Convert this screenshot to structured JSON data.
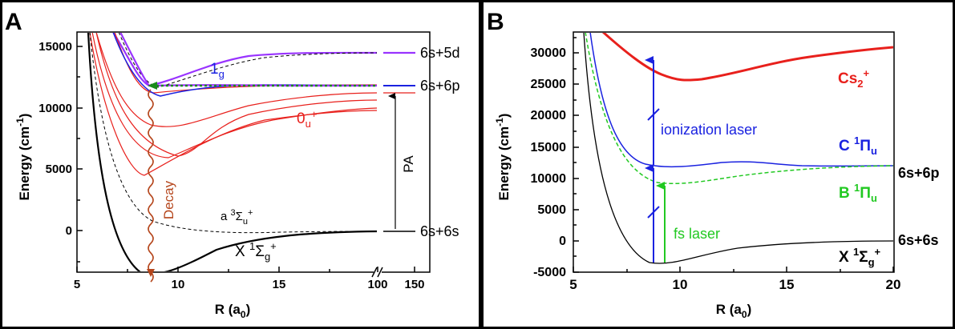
{
  "panelA": {
    "letter": "A",
    "xticks": [
      "5",
      "10",
      "15",
      "100",
      "150"
    ],
    "yticks": [
      "0",
      "5000",
      "10000",
      "15000"
    ],
    "xlabel": {
      "main": "R (a",
      "sub": "0",
      "end": ")"
    },
    "ylabel": {
      "main": "Energy (cm",
      "sup": "-1",
      "end": ")"
    },
    "asymptotes": [
      "6s+5d",
      "6s+6p",
      "6s+6s"
    ],
    "labels": {
      "onesubg": {
        "main": "1",
        "sub": "g"
      },
      "zerou": {
        "main": "0",
        "sub": "u",
        "sup": "+"
      },
      "pa": "PA",
      "decay": "Decay",
      "a3sigma": {
        "main": "a ",
        "sup": "3",
        "greek": "Σ",
        "sub": "u",
        "sup2": "+"
      },
      "x1sigma": {
        "main": "X ",
        "sup": "1",
        "greek": "Σ",
        "sub": "g",
        "sup2": "+"
      }
    }
  },
  "panelB": {
    "letter": "B",
    "xticks": [
      "5",
      "10",
      "15",
      "20"
    ],
    "yticks": [
      "-5000",
      "0",
      "5000",
      "10000",
      "15000",
      "20000",
      "25000",
      "30000"
    ],
    "xlabel": {
      "main": "R (a",
      "sub": "0",
      "end": ")"
    },
    "ylabel": {
      "main": "Energy (cm",
      "sup": "-1",
      "end": ")"
    },
    "asymptotes": [
      "6s+6p",
      "6s+6s"
    ],
    "labels": {
      "cs2": {
        "main": "Cs",
        "sub": "2",
        "sup": "+"
      },
      "cstate": {
        "main": "C ",
        "sup": "1",
        "greek": "Π",
        "sub": "u"
      },
      "bstate": {
        "main": "B ",
        "sup": "1",
        "greek": "Π",
        "sub": "u"
      },
      "xstate": {
        "main": "X ",
        "sup": "1",
        "greek": "Σ",
        "sub": "g",
        "sup2": "+"
      },
      "ionization": "ionization laser",
      "fs": "fs laser"
    }
  },
  "colors": {
    "black": "#000000",
    "red": "#e8201c",
    "blue": "#1a22e0",
    "purple": "#9933ff",
    "green": "#22c922",
    "brown": "#b5461c",
    "darkgreen": "#1a8a1a"
  }
}
